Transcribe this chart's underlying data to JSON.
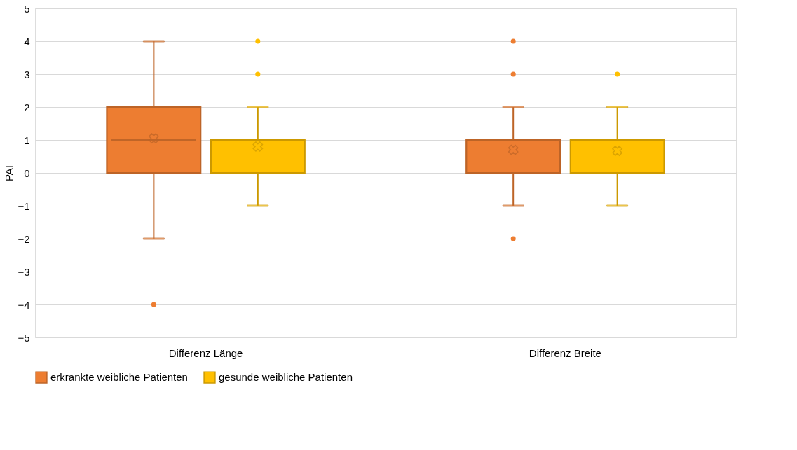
{
  "chart_data": {
    "type": "box",
    "ylabel": "PAI",
    "categories": [
      "Differenz Länge",
      "Differenz Breite"
    ],
    "ylim": [
      -5,
      5
    ],
    "yticks": [
      -5,
      -4,
      -3,
      -2,
      -1,
      0,
      1,
      2,
      3,
      4,
      5
    ],
    "grid": "y",
    "legend": "bottom",
    "series": [
      {
        "name": "erkrankte weibliche Patienten",
        "color": "#ed7d31",
        "boxes": [
          {
            "low": -2,
            "q1": 0,
            "median": 1,
            "q3": 2,
            "high": 4,
            "mean": 1.05,
            "outliers": [
              -4
            ]
          },
          {
            "low": -1,
            "q1": 0,
            "median": 1,
            "q3": 1,
            "high": 2,
            "mean": 0.7,
            "outliers": [
              -2,
              3,
              4
            ]
          }
        ]
      },
      {
        "name": "gesunde weibliche Patienten",
        "color": "#ffc000",
        "boxes": [
          {
            "low": -1,
            "q1": 0,
            "median": 1,
            "q3": 1,
            "high": 2,
            "mean": 0.8,
            "outliers": [
              3,
              4
            ]
          },
          {
            "low": -1,
            "q1": 0,
            "median": 1,
            "q3": 1,
            "high": 2,
            "mean": 0.67,
            "outliers": [
              3
            ]
          }
        ]
      }
    ]
  }
}
